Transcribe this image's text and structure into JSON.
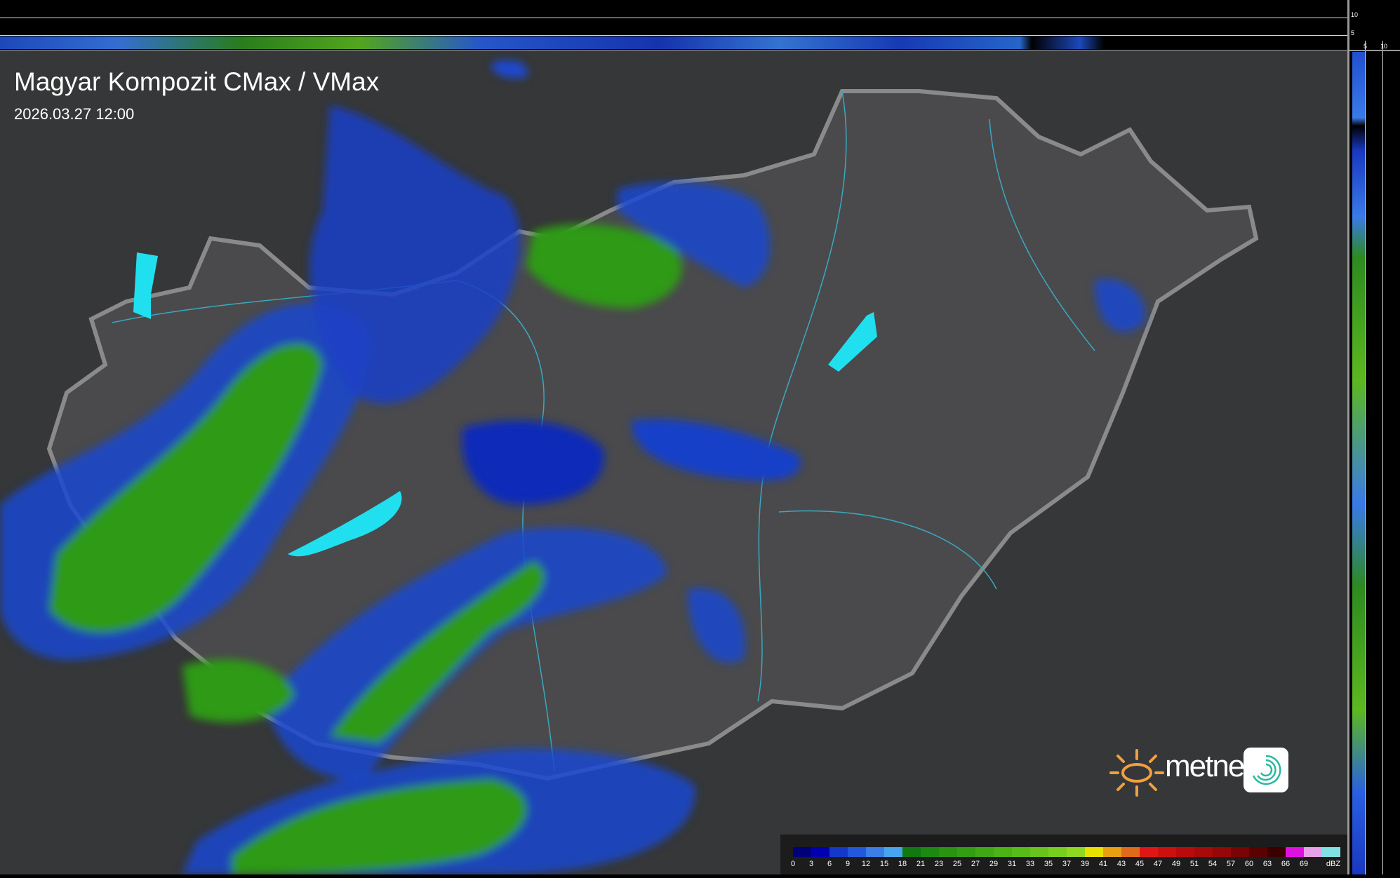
{
  "header": {
    "title": "Magyar Kompozit CMax / VMax",
    "timestamp": "2026.03.27 12:00"
  },
  "profile_axes": {
    "top_ticks": [
      "10",
      "5"
    ],
    "right_ticks": [
      "5",
      "10"
    ]
  },
  "logo": {
    "brand": "metnet",
    "icon": "metnet-swirl-app-icon"
  },
  "legend": {
    "unit": "dBZ",
    "labels": [
      "0",
      "3",
      "6",
      "9",
      "12",
      "15",
      "18",
      "21",
      "23",
      "25",
      "27",
      "29",
      "31",
      "33",
      "35",
      "37",
      "39",
      "41",
      "43",
      "45",
      "47",
      "49",
      "51",
      "54",
      "57",
      "60",
      "63",
      "66",
      "69"
    ],
    "colors": [
      "#00007a",
      "#0000b0",
      "#1438c8",
      "#2458dc",
      "#3a7ee6",
      "#48a4ee",
      "#127812",
      "#1c8a10",
      "#2a9412",
      "#349e12",
      "#40a814",
      "#4cb216",
      "#58bc18",
      "#68c41c",
      "#78ce1e",
      "#8ed822",
      "#e8e000",
      "#e8a012",
      "#e06a1a",
      "#e01616",
      "#cc1010",
      "#b80c0c",
      "#a60a0a",
      "#940808",
      "#7a0404",
      "#5a0202",
      "#3a0000",
      "#e010e0",
      "#e8a0e8",
      "#80e0e4"
    ]
  },
  "map_colors": {
    "background": "#363738",
    "country": "#4a4a4c",
    "border": "#8a8a8a",
    "rivers": "#3aa8c0",
    "lakes": "#20e0f0"
  }
}
